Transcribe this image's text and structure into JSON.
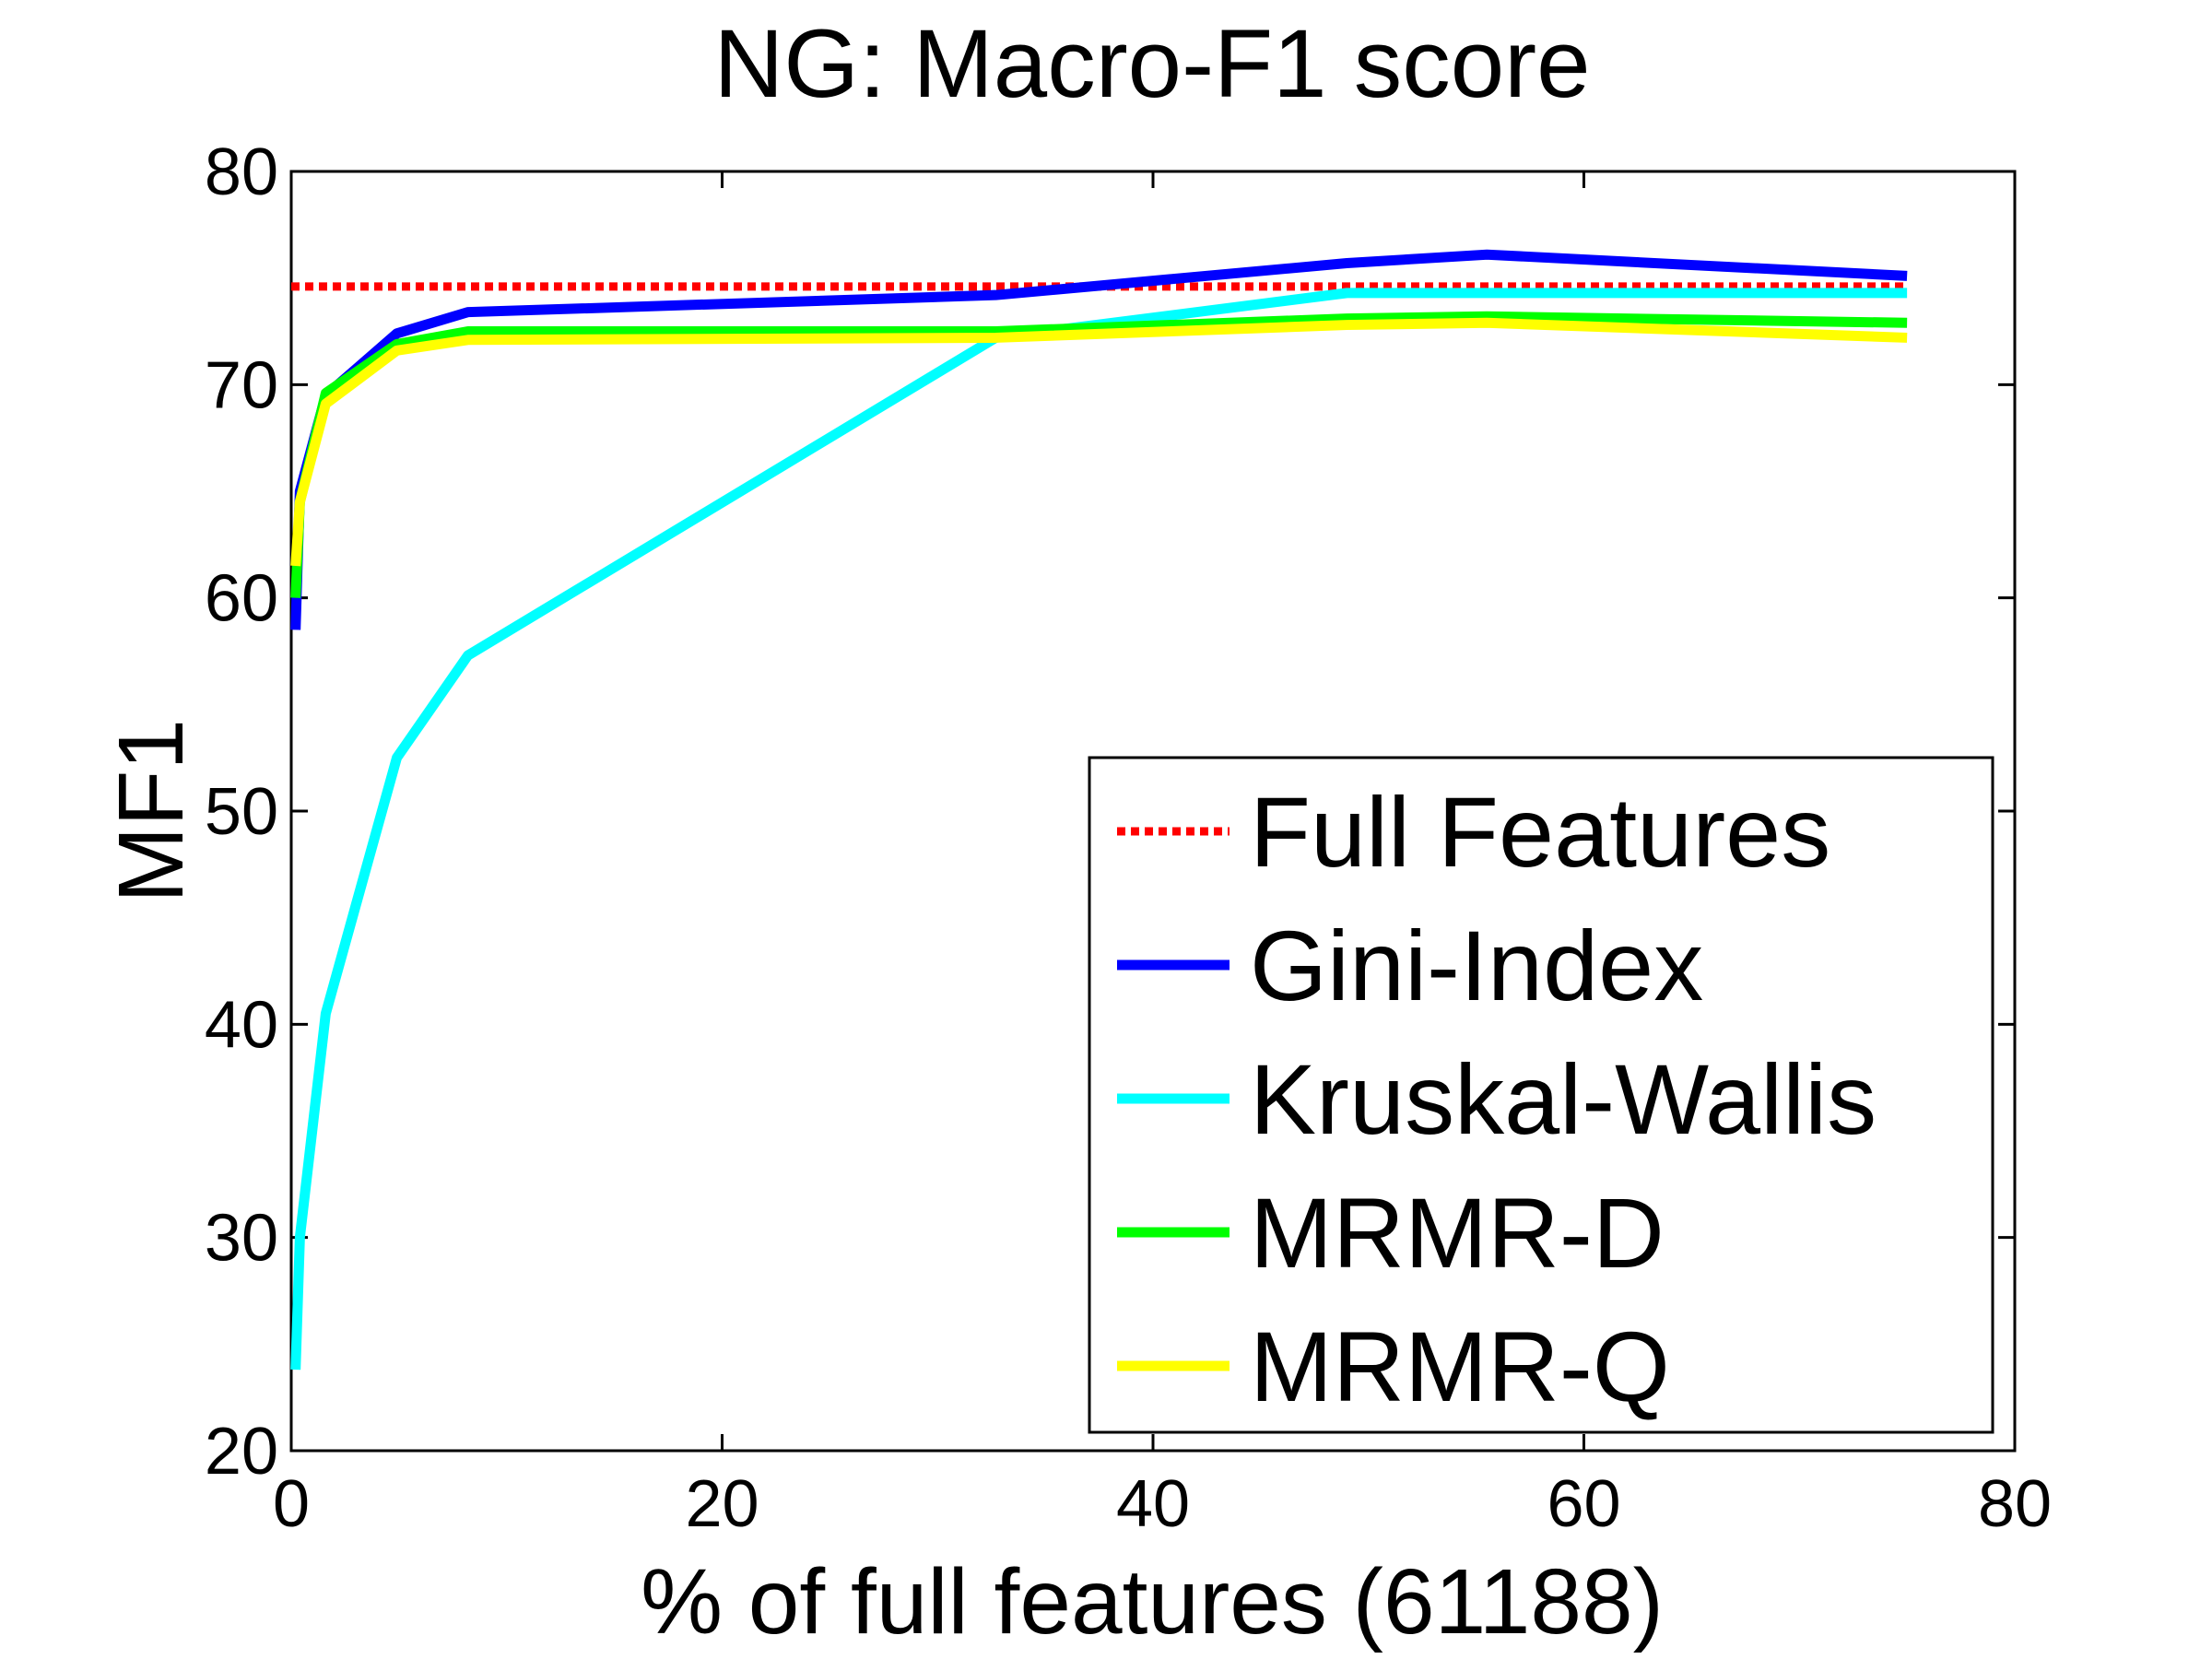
{
  "chart_data": {
    "type": "line",
    "title": "NG: Macro-F1 score",
    "xlabel": "% of full features (61188)",
    "ylabel": "MF1",
    "xlim": [
      0,
      80
    ],
    "ylim": [
      20,
      80
    ],
    "xticks": [
      0,
      20,
      40,
      60,
      80
    ],
    "yticks": [
      20,
      30,
      40,
      50,
      60,
      70,
      80
    ],
    "grid": false,
    "legend_position": "bottom-right",
    "series": [
      {
        "name": "Full Features",
        "color": "#ff0000",
        "style": "dotted",
        "x": [
          0,
          75
        ],
        "y": [
          74.6,
          74.6
        ]
      },
      {
        "name": "Gini-Index",
        "color": "#0000ff",
        "style": "solid",
        "x": [
          0.2,
          0.4,
          1.6,
          4.9,
          8.2,
          32.7,
          49.0,
          55.5,
          75.0
        ],
        "y": [
          58.5,
          65.0,
          69.5,
          72.4,
          73.4,
          74.2,
          75.7,
          76.1,
          75.1
        ]
      },
      {
        "name": "Kruskal-Wallis",
        "color": "#00ffff",
        "style": "solid",
        "x": [
          0.2,
          0.4,
          1.6,
          4.9,
          8.2,
          32.7,
          49.0,
          55.5,
          75.0
        ],
        "y": [
          23.8,
          30.0,
          40.5,
          52.5,
          57.3,
          72.2,
          74.3,
          74.3,
          74.3
        ]
      },
      {
        "name": "MRMR-D",
        "color": "#00ff00",
        "style": "solid",
        "x": [
          0.2,
          0.4,
          1.6,
          4.9,
          8.2,
          32.7,
          49.0,
          55.5,
          75.0
        ],
        "y": [
          60.0,
          64.5,
          69.6,
          71.9,
          72.5,
          72.5,
          73.1,
          73.2,
          72.9
        ]
      },
      {
        "name": "MRMR-Q",
        "color": "#ffff00",
        "style": "solid",
        "x": [
          0.2,
          0.4,
          1.6,
          4.9,
          8.2,
          32.7,
          49.0,
          55.5,
          75.0
        ],
        "y": [
          61.5,
          64.5,
          69.1,
          71.6,
          72.1,
          72.2,
          72.8,
          72.9,
          72.2
        ]
      }
    ]
  }
}
